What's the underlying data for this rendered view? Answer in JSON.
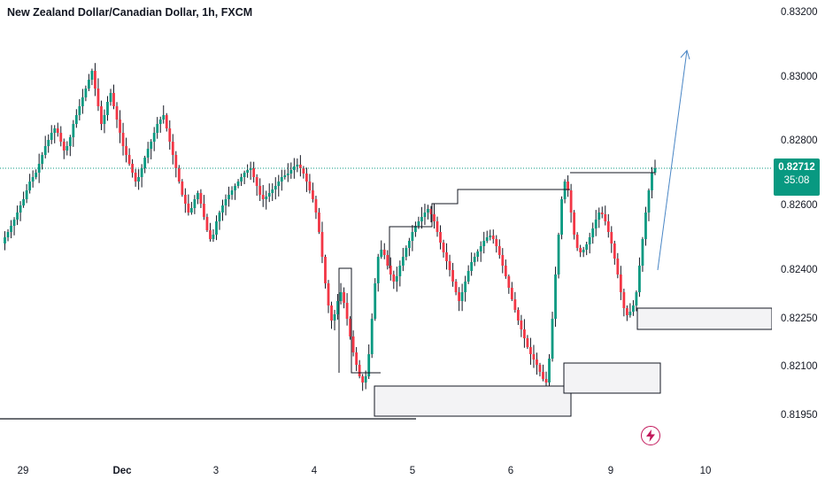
{
  "title": "New Zealand Dollar/Canadian Dollar, 1h, FXCM",
  "last_price": "0.82712",
  "countdown": "35:08",
  "colors": {
    "up": "#089981",
    "down": "#f23645",
    "arrow": "#4a86c5",
    "current": "#089981"
  },
  "icons": {
    "alert": "flash-icon"
  },
  "chart_data": {
    "type": "candlestick",
    "title": "New Zealand Dollar/Canadian Dollar, 1h, FXCM",
    "y_ticks": [
      "0.83200",
      "0.83000",
      "0.82800",
      "0.82600",
      "0.82400",
      "0.82250",
      "0.82100",
      "0.81950"
    ],
    "x_ticks": [
      {
        "label": "29",
        "bold": false
      },
      {
        "label": "Dec",
        "bold": true
      },
      {
        "label": "3",
        "bold": false
      },
      {
        "label": "4",
        "bold": false
      },
      {
        "label": "5",
        "bold": false
      },
      {
        "label": "6",
        "bold": false
      },
      {
        "label": "9",
        "bold": false
      },
      {
        "label": "10",
        "bold": false
      }
    ],
    "ylim": [
      0.8185,
      0.8321
    ],
    "current_price": 0.82712,
    "support_line": 0.8195
  }
}
